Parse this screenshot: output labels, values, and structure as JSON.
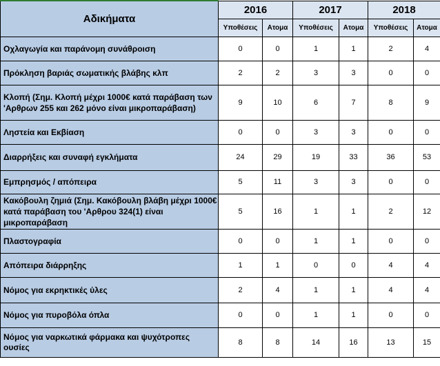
{
  "header": {
    "title": "Αδικήματα",
    "years": [
      "2016",
      "2017",
      "2018"
    ],
    "sub_cases": "Υποθέσεις",
    "sub_persons": "Ατομα"
  },
  "rows": [
    {
      "label": "Οχλαγωγία και παράνομη  συνάθροιση",
      "values": [
        "0",
        "0",
        "1",
        "1",
        "2",
        "4"
      ]
    },
    {
      "label": "Πρόκληση βαριάς σωματικής  βλάβης κλπ",
      "values": [
        "2",
        "2",
        "3",
        "3",
        "0",
        "0"
      ]
    },
    {
      "label": "Κλοπή  (Σημ.  Κλοπή μέχρι 1000€ κατά παράβαση των  'Αρθρων 255 και 262 μόνο είναι μικροπαράβαση)",
      "values": [
        "9",
        "10",
        "6",
        "7",
        "8",
        "9"
      ]
    },
    {
      "label": "Ληστεία και Εκβίαση",
      "values": [
        "0",
        "0",
        "3",
        "3",
        "0",
        "0"
      ]
    },
    {
      "label": "Διαρρήξεις και συναφή εγκλήματα",
      "values": [
        "24",
        "29",
        "19",
        "33",
        "36",
        "53"
      ]
    },
    {
      "label": "Εμπρησμός / απόπειρα",
      "values": [
        "5",
        "11",
        "3",
        "3",
        "0",
        "0"
      ]
    },
    {
      "label": "Κακόβουλη ζημιά (Σημ.  Κακόβουλη βλάβη μέχρι 1000€  κατά παράβαση του 'Αρθρου 324(1) είναι μικροπαράβαση",
      "values": [
        "5",
        "16",
        "1",
        "1",
        "2",
        "12"
      ]
    },
    {
      "label": "Πλαστογραφία",
      "values": [
        "0",
        "0",
        "1",
        "1",
        "0",
        "0"
      ]
    },
    {
      "label": "Απόπειρα διάρρηξης",
      "values": [
        "1",
        "1",
        "0",
        "0",
        "4",
        "4"
      ]
    },
    {
      "label": "Νόμος για εκρηκτικές ύλες",
      "values": [
        "2",
        "4",
        "1",
        "1",
        "4",
        "4"
      ]
    },
    {
      "label": "Νόμος για πυροβόλα όπλα",
      "values": [
        "0",
        "0",
        "1",
        "1",
        "0",
        "0"
      ]
    },
    {
      "label": "Νόμος για ναρκωτικά φάρμακα και ψυχότροπες ουσίες",
      "values": [
        "8",
        "8",
        "14",
        "16",
        "13",
        "15"
      ]
    }
  ]
}
